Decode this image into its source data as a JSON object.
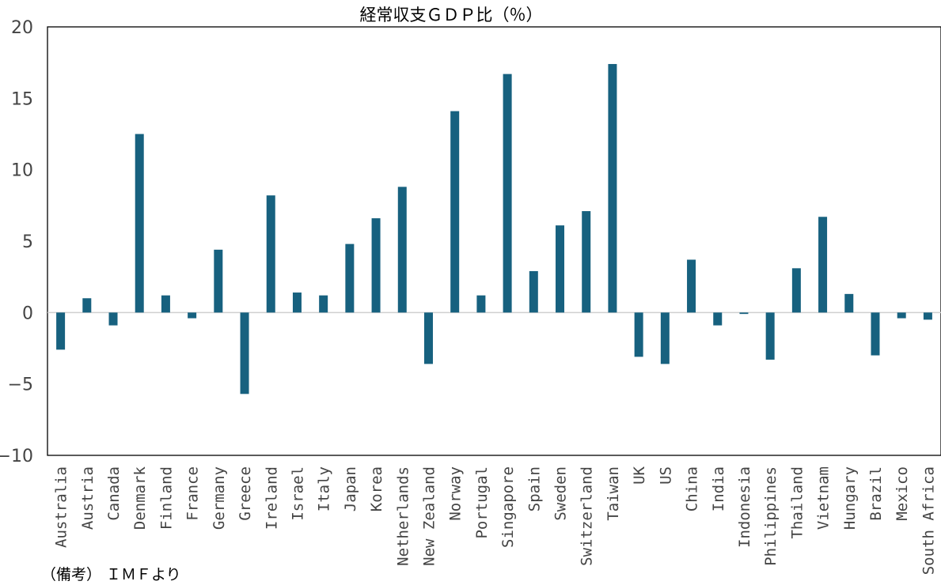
{
  "chart_data": {
    "type": "bar",
    "title": "経常収支ＧＤＰ比（％）",
    "xlabel": "",
    "ylabel": "",
    "ylim": [
      -10,
      20
    ],
    "yticks": [
      20,
      15,
      10,
      5,
      0,
      -5,
      -10
    ],
    "ytick_labels": [
      "20",
      "15",
      "10",
      "5",
      "0",
      "−5",
      "−10"
    ],
    "grid": false,
    "bar_color": "#17617f",
    "categories": [
      "Australia",
      "Austria",
      "Canada",
      "Denmark",
      "Finland",
      "France",
      "Germany",
      "Greece",
      "Ireland",
      "Israel",
      "Italy",
      "Japan",
      "Korea",
      "Netherlands",
      "New Zealand",
      "Norway",
      "Portugal",
      "Singapore",
      "Spain",
      "Sweden",
      "Switzerland",
      "Taiwan",
      "UK",
      "US",
      "China",
      "India",
      "Indonesia",
      "Philippines",
      "Thailand",
      "Vietnam",
      "Hungary",
      "Brazil",
      "Mexico",
      "South Africa"
    ],
    "values": [
      -2.6,
      1.0,
      -0.9,
      12.5,
      1.2,
      -0.4,
      4.4,
      -5.7,
      8.2,
      1.4,
      1.2,
      4.8,
      6.6,
      8.8,
      -3.6,
      14.1,
      1.2,
      16.7,
      2.9,
      6.1,
      7.1,
      17.4,
      -3.1,
      -3.6,
      3.7,
      -0.9,
      -0.1,
      -3.3,
      3.1,
      6.7,
      1.3,
      -3.0,
      -0.4,
      -0.5
    ]
  },
  "note": "（備考） ＩＭＦより"
}
